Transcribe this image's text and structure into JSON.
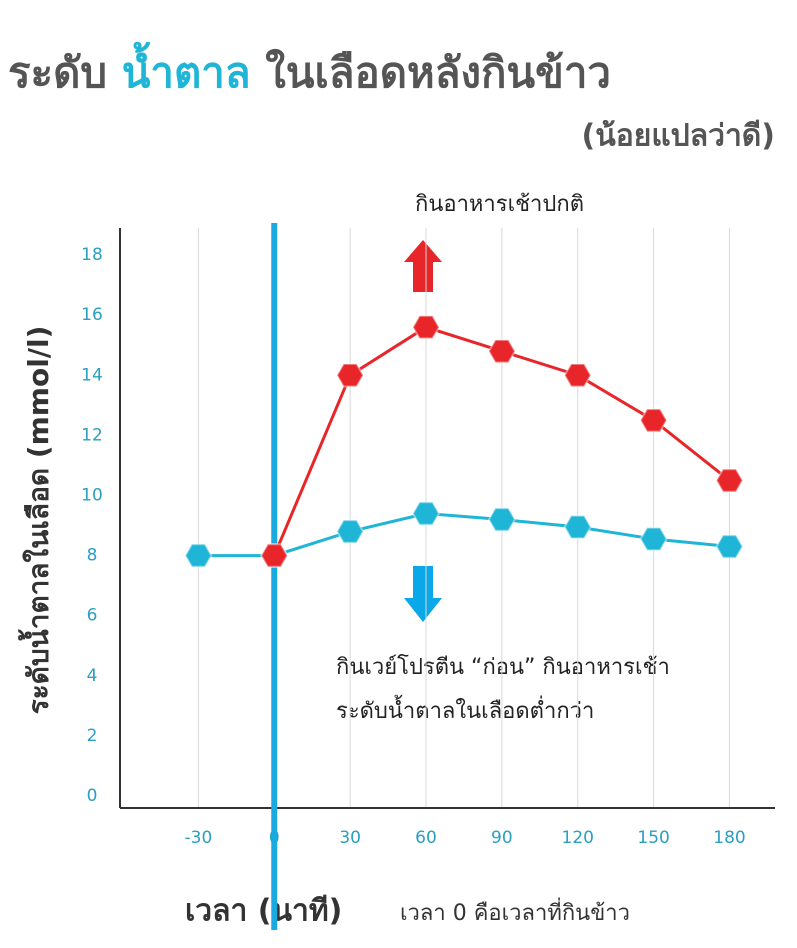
{
  "chart_data": {
    "type": "line",
    "title": [
      "ระดับ",
      "น้ำตาล",
      "ในเลือดหลังกินข้าว"
    ],
    "subtitle": "(น้อยแปลว่าดี)",
    "y_label": "ระดับน้ำตาลในเลือด (mmol/l)",
    "x_label": "เวลา (นาที)",
    "x_note": "เวลา 0 คือเวลาที่กินข้าว",
    "annotations": [
      "กินอาหารเช้าปกติ",
      "กินเวย์โปรตีน “ก่อน” กินอาหารเช้า",
      "ระดับน้ำตาลในเลือดต่ำกว่า"
    ],
    "x": [
      -30,
      0,
      30,
      60,
      90,
      120,
      150,
      180
    ],
    "series": [
      {
        "color": "#1fb5d6",
        "values": [
          8,
          8,
          8.8,
          9.4,
          9.2,
          8.95,
          8.55,
          8.3
        ]
      },
      {
        "color": "#e8262a",
        "values": [
          null,
          8,
          14,
          15.6,
          14.8,
          14,
          12.5,
          10.5
        ]
      }
    ],
    "xlim": [
      -61,
      198
    ],
    "ylim": [
      -0.4,
      18.9
    ],
    "xticks": [
      -30,
      0,
      30,
      60,
      90,
      120,
      150,
      180
    ],
    "yticks": [
      0,
      2,
      4,
      6,
      8,
      10,
      12,
      14,
      16,
      18
    ],
    "grid": true
  }
}
